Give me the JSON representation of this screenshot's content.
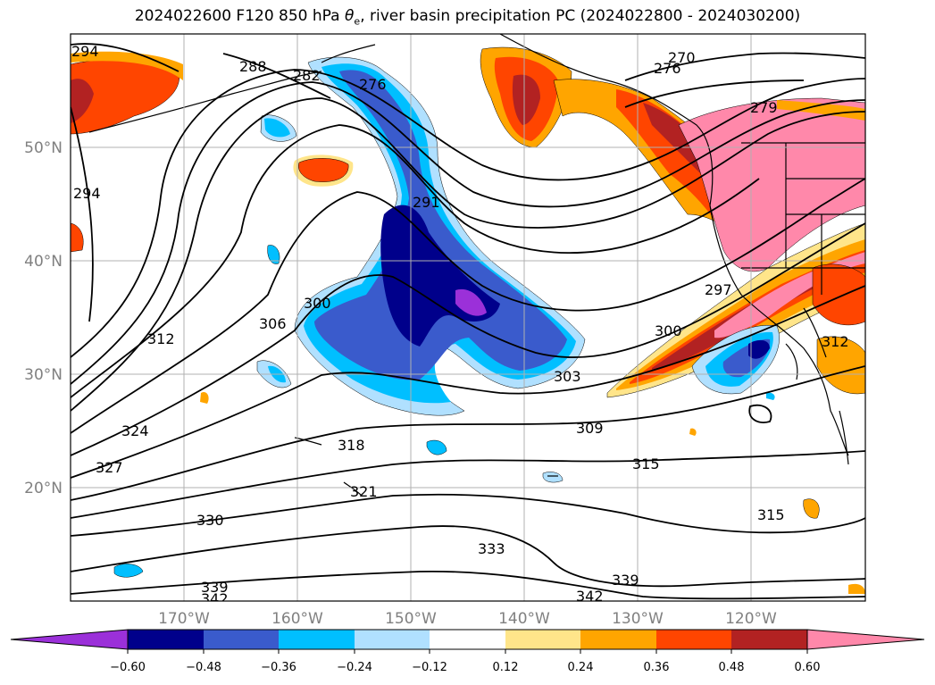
{
  "title": {
    "prefix": "2024022600 F120 850 hPa ",
    "theta": "θ",
    "theta_sub": "e",
    "suffix": ", river basin precipitation PC (2024022800 - 2024030200)"
  },
  "lat_labels": [
    "50°N",
    "40°N",
    "30°N",
    "20°N"
  ],
  "lon_labels": [
    "170°W",
    "160°W",
    "150°W",
    "140°W",
    "130°W",
    "120°W"
  ],
  "colorbar": {
    "ticks": [
      "−0.60",
      "−0.48",
      "−0.36",
      "−0.24",
      "−0.12",
      "0.12",
      "0.24",
      "0.36",
      "0.48",
      "0.60"
    ],
    "colors": {
      "under": "#9b30d9",
      "c1": "#00008b",
      "c2": "#3a5bcc",
      "c3": "#00bfff",
      "c4": "#b0e0ff",
      "c5": "#ffffff",
      "c6": "#ffe58a",
      "c7": "#ffa500",
      "c8": "#ff4500",
      "c9": "#b22222",
      "over": "#ff88aa"
    }
  },
  "contour_labels": {
    "a294": "294",
    "b288": "288",
    "c282": "282",
    "d276": "276",
    "e270": "270",
    "f276": "276",
    "g279": "279",
    "h294": "294",
    "i291": "291",
    "j300": "300",
    "k306": "306",
    "l312": "312",
    "m300": "300",
    "n297": "297",
    "o303": "303",
    "p309": "309",
    "q312": "312",
    "r324": "324",
    "s318": "318",
    "t327": "327",
    "u321": "321",
    "v315": "315",
    "w330": "330",
    "x333": "333",
    "y315": "315",
    "z339": "339",
    "aa339": "339",
    "ab342": "342",
    "ac342": "342"
  }
}
